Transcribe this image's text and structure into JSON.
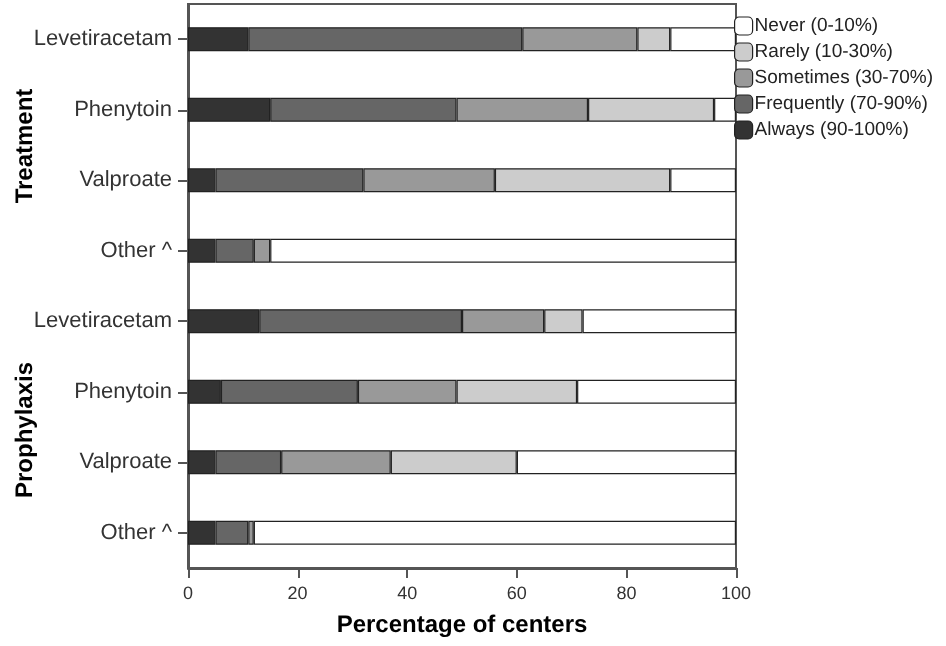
{
  "chart_data": {
    "type": "bar",
    "orientation": "horizontal",
    "stacked": true,
    "categories": [
      "Levetiracetam",
      "Phenytoin",
      "Valproate",
      "Other ^",
      "Levetiracetam",
      "Phenytoin",
      "Valproate",
      "Other ^"
    ],
    "series": [
      {
        "name": "Always (90-100%)",
        "color": "#333333",
        "values": [
          11,
          15,
          5,
          5,
          13,
          6,
          5,
          5
        ]
      },
      {
        "name": "Frequently (70-90%)",
        "color": "#666666",
        "values": [
          50,
          34,
          27,
          7,
          37,
          25,
          12,
          6
        ]
      },
      {
        "name": "Sometimes (30-70%)",
        "color": "#999999",
        "values": [
          21,
          24,
          24,
          3,
          15,
          18,
          20,
          1
        ]
      },
      {
        "name": "Rarely (10-30%)",
        "color": "#cccccc",
        "values": [
          6,
          23,
          32,
          0,
          7,
          22,
          23,
          0
        ]
      },
      {
        "name": "Never (0-10%)",
        "color": "#ffffff",
        "values": [
          12,
          4,
          12,
          85,
          28,
          29,
          40,
          88
        ]
      }
    ],
    "xlabel": "Percentage of centers",
    "annotations": [
      "Treatment",
      "Prophylaxis"
    ],
    "xlim": [
      0,
      100
    ],
    "xticks": [
      0,
      20,
      40,
      60,
      80,
      100
    ],
    "grid": false,
    "legend": "top right"
  }
}
